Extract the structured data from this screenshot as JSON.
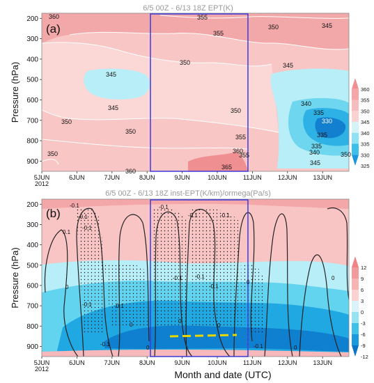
{
  "figure": {
    "xlabel": "Month and date (UTC)",
    "ylabel": "Pressure (hPa)"
  },
  "colors": {
    "pink_dark": "#f2a3a5",
    "pink_mid": "#f7c0c0",
    "pink_light": "#fbdad9",
    "cyan_light": "#b8eef7",
    "cyan": "#5fd3ef",
    "blue_mid": "#1fa9e3",
    "blue_dark": "#0f7fcf",
    "box": "#3a3adb",
    "contour_a": "#ffffff",
    "contour_b": "#222222",
    "marker": "#e8d800",
    "title": "#9a9a9a"
  },
  "chart_data": [
    {
      "id": "a",
      "type": "heatmap",
      "panel_label": "(a)",
      "title": "6/5 00Z - 6/13 18Z EPT(K)",
      "ylabel": "Pressure (hPa)",
      "y_ticks": [
        200,
        300,
        400,
        500,
        600,
        700,
        800,
        900
      ],
      "x_ticks": [
        "5JUN\n2012",
        "6JUN",
        "7JUN",
        "8JUN",
        "9JUN",
        "10JUN",
        "11JUN",
        "12JUN",
        "13JUN"
      ],
      "x_range_days": [
        5.0,
        13.75
      ],
      "ylim": [
        950,
        175
      ],
      "colorbar": {
        "levels": [
          325,
          330,
          335,
          340,
          345,
          350,
          355,
          360
        ],
        "labels": [
          "360",
          "355",
          "350",
          "345",
          "340",
          "335",
          "330",
          "325"
        ]
      },
      "contour_labels": [
        "360",
        "355",
        "350",
        "345",
        "350",
        "345",
        "350",
        "355",
        "355",
        "350",
        "345",
        "335",
        "350",
        "360",
        "365",
        "360",
        "345",
        "340",
        "335",
        "330",
        "335",
        "340",
        "345",
        "350",
        "355",
        "350"
      ],
      "highlight_box_days": [
        8.0,
        10.75
      ]
    },
    {
      "id": "b",
      "type": "heatmap",
      "panel_label": "(b)",
      "title": "6/5 00Z - 6/13 18Z inst-EPT(K/km)/ormega(Pa/s)",
      "ylabel": "Pressure (hPa)",
      "xlabel": "Month and date (UTC)",
      "y_ticks": [
        200,
        300,
        400,
        500,
        600,
        700,
        800,
        900
      ],
      "x_ticks": [
        "5JUN\n2012",
        "6JUN",
        "7JUN",
        "8JUN",
        "9JUN",
        "10JUN",
        "11JUN",
        "12JUN",
        "13JUN"
      ],
      "x_range_days": [
        5.0,
        13.75
      ],
      "ylim": [
        950,
        175
      ],
      "colorbar": {
        "levels": [
          -12,
          -9,
          -6,
          -3,
          0,
          3,
          6,
          9,
          12
        ],
        "labels": [
          "12",
          "9",
          "6",
          "3",
          "0",
          "-3",
          "-6",
          "-9",
          "-12"
        ]
      },
      "contour_labels": [
        "-0.1",
        "-0.1",
        "-0.1",
        "0.1",
        "-0.1",
        "-0.1",
        "-0.1",
        "-0.1",
        "-0.1",
        "-0.1",
        "-0.1",
        "-0.1",
        "-0.1",
        "-0.1",
        "0",
        "0",
        "0",
        "0",
        "0",
        "0",
        "0",
        "0"
      ],
      "highlight_box_days": [
        8.0,
        10.75
      ]
    }
  ]
}
